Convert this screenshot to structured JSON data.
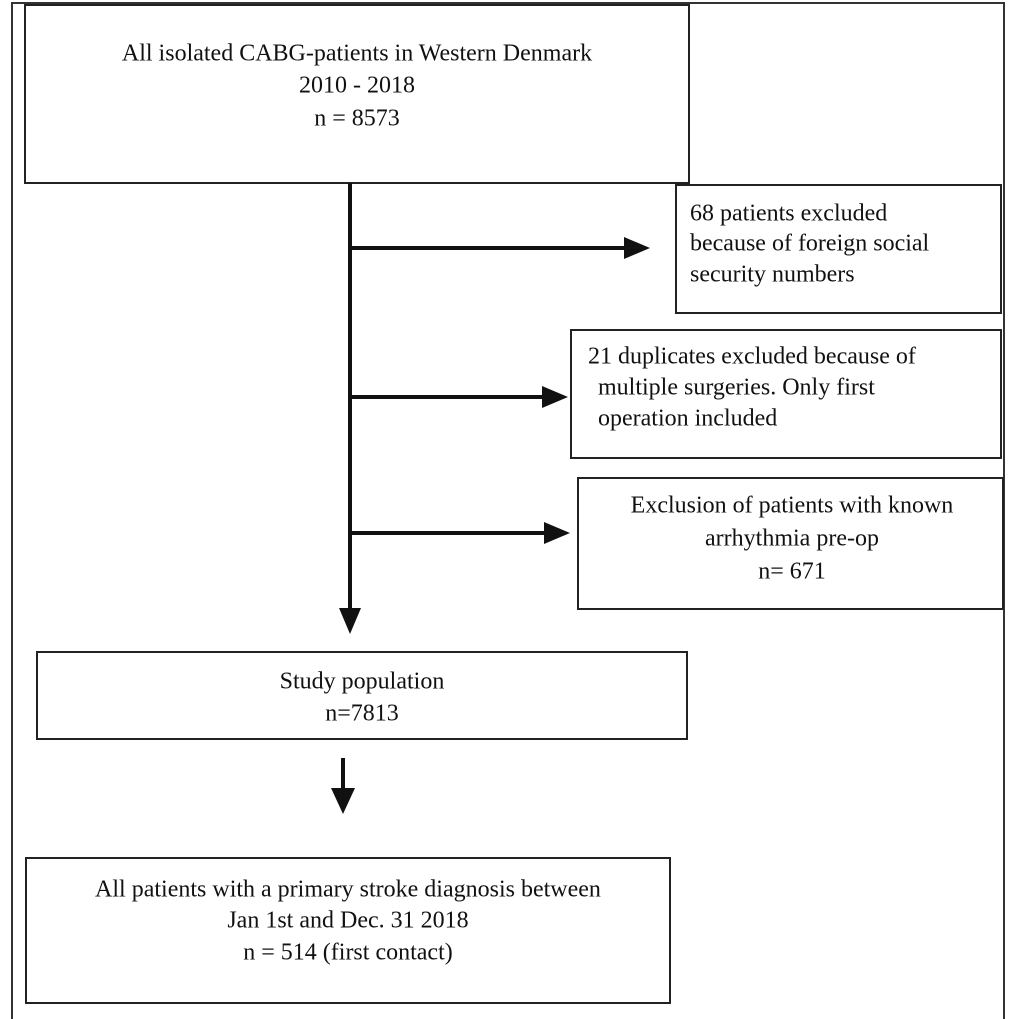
{
  "nodes": [
    {
      "lines": [
        "All isolated CABG-patients in Western Denmark",
        "2010 - 2018",
        "n = 8573"
      ]
    },
    {
      "lines": [
        "68 patients excluded",
        "because of foreign social",
        "security numbers"
      ]
    },
    {
      "lines": [
        "21 duplicates excluded because of",
        "multiple surgeries. Only first",
        "operation included"
      ]
    },
    {
      "lines": [
        "Exclusion of patients with known",
        "arrhythmia pre-op",
        "n= 671"
      ]
    },
    {
      "lines": [
        "Study population",
        "n=7813"
      ]
    },
    {
      "lines": [
        "All patients with a primary stroke diagnosis between",
        "Jan 1st and Dec. 31 2018",
        "n = 514 (first contact)"
      ]
    }
  ]
}
